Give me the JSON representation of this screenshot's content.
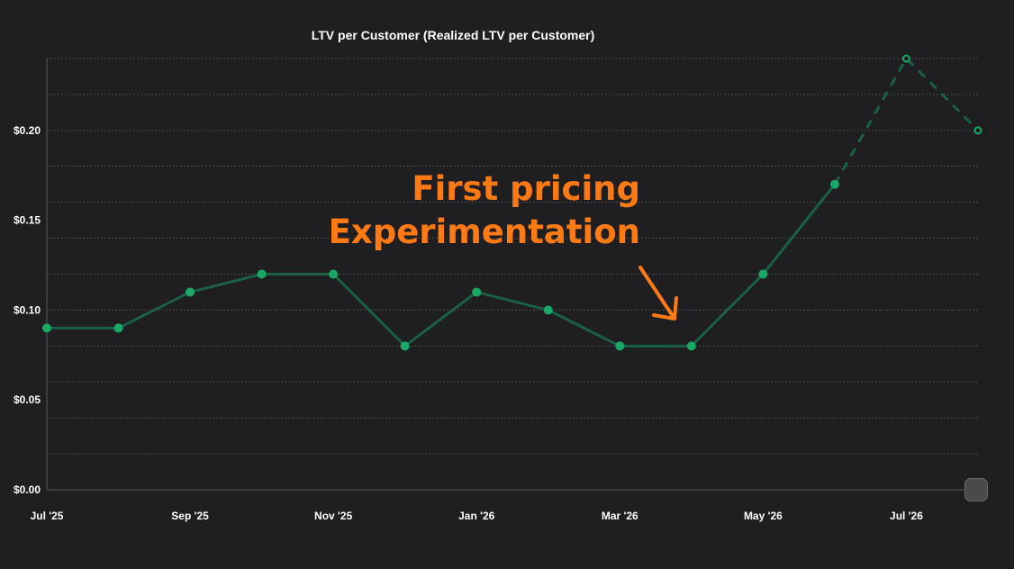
{
  "chart_data": {
    "type": "line",
    "title": "LTV per Customer (Realized LTV per Customer)",
    "x": [
      "Jul '25",
      "Aug '25",
      "Sep '25",
      "Oct '25",
      "Nov '25",
      "Dec '25",
      "Jan '26",
      "Feb '26",
      "Mar '26",
      "Apr '26",
      "May '26",
      "Jun '26",
      "Jul '26",
      "Aug '26"
    ],
    "x_tick_labels": [
      "Jul '25",
      "Sep '25",
      "Nov '25",
      "Jan '26",
      "Mar '26",
      "May '26",
      "Jul '26"
    ],
    "series": [
      {
        "values": [
          0.09,
          0.09,
          0.11,
          0.12,
          0.12,
          0.08,
          0.11,
          0.1,
          0.08,
          0.08,
          0.12,
          0.17,
          0.24,
          0.2
        ],
        "projected_from_index": 11,
        "color": "#1aa866",
        "line_color": "#1b5f45"
      }
    ],
    "ylim": [
      0,
      0.24
    ],
    "y_ticks": [
      0.0,
      0.05,
      0.1,
      0.15,
      0.2
    ],
    "y_tick_labels": [
      "$0.00",
      "$0.05",
      "$0.10",
      "$0.15",
      "$0.20"
    ],
    "grid": true,
    "annotation": {
      "lines": [
        "First pricing",
        "Experimentation"
      ],
      "color": "#ff7a12",
      "points_to": "Apr '26"
    }
  }
}
